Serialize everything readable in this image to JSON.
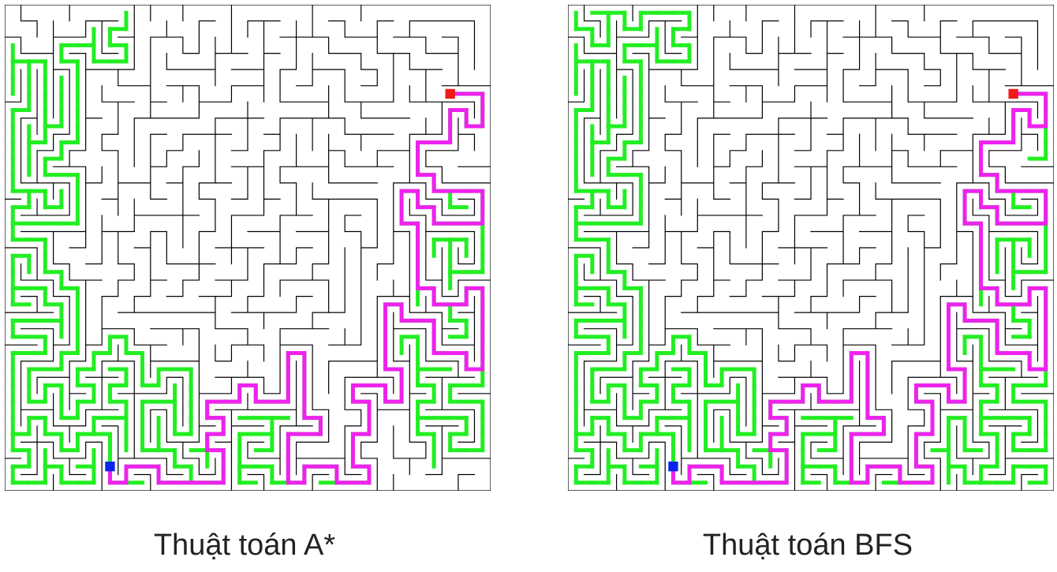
{
  "maze": {
    "cols": 30,
    "rows": 30,
    "start_cell": [
      6,
      28
    ],
    "goal_cell": [
      27,
      5
    ]
  },
  "colors": {
    "wall": "#000000",
    "explored": "#22ee22",
    "path": "#ee22ee",
    "start": "#0a24f0",
    "goal": "#f21818"
  },
  "panels": [
    {
      "id": "astar",
      "caption": "Thuật toán A*",
      "explored_fraction": 0.45
    },
    {
      "id": "bfs",
      "caption": "Thuật toán BFS",
      "explored_fraction": 0.8
    }
  ]
}
